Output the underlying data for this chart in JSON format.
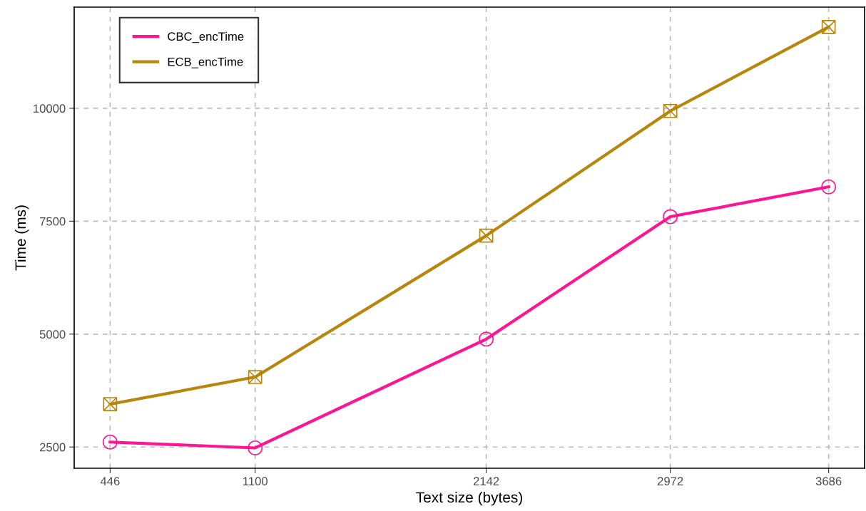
{
  "chart_data": {
    "type": "line",
    "xlabel": "Text size (bytes)",
    "ylabel": "Time (ms)",
    "x": [
      446,
      1100,
      2142,
      2972,
      3686
    ],
    "series": [
      {
        "name": "CBC_encTime",
        "color": "#ff1493",
        "marker": "circle",
        "values": [
          2610,
          2480,
          4890,
          7600,
          8260
        ]
      },
      {
        "name": "ECB_encTime",
        "color": "#b8860b",
        "marker": "cross",
        "values": [
          3450,
          4050,
          7180,
          9940,
          11800
        ]
      }
    ],
    "xlim": [
      284,
      3848
    ],
    "xticks": [
      446,
      1100,
      2142,
      2972,
      3686
    ],
    "ylim": [
      2030,
      12240
    ],
    "yticks": [
      2500,
      5000,
      7500,
      10000
    ],
    "grid": true,
    "legend": "top left",
    "line_style": "solid"
  }
}
